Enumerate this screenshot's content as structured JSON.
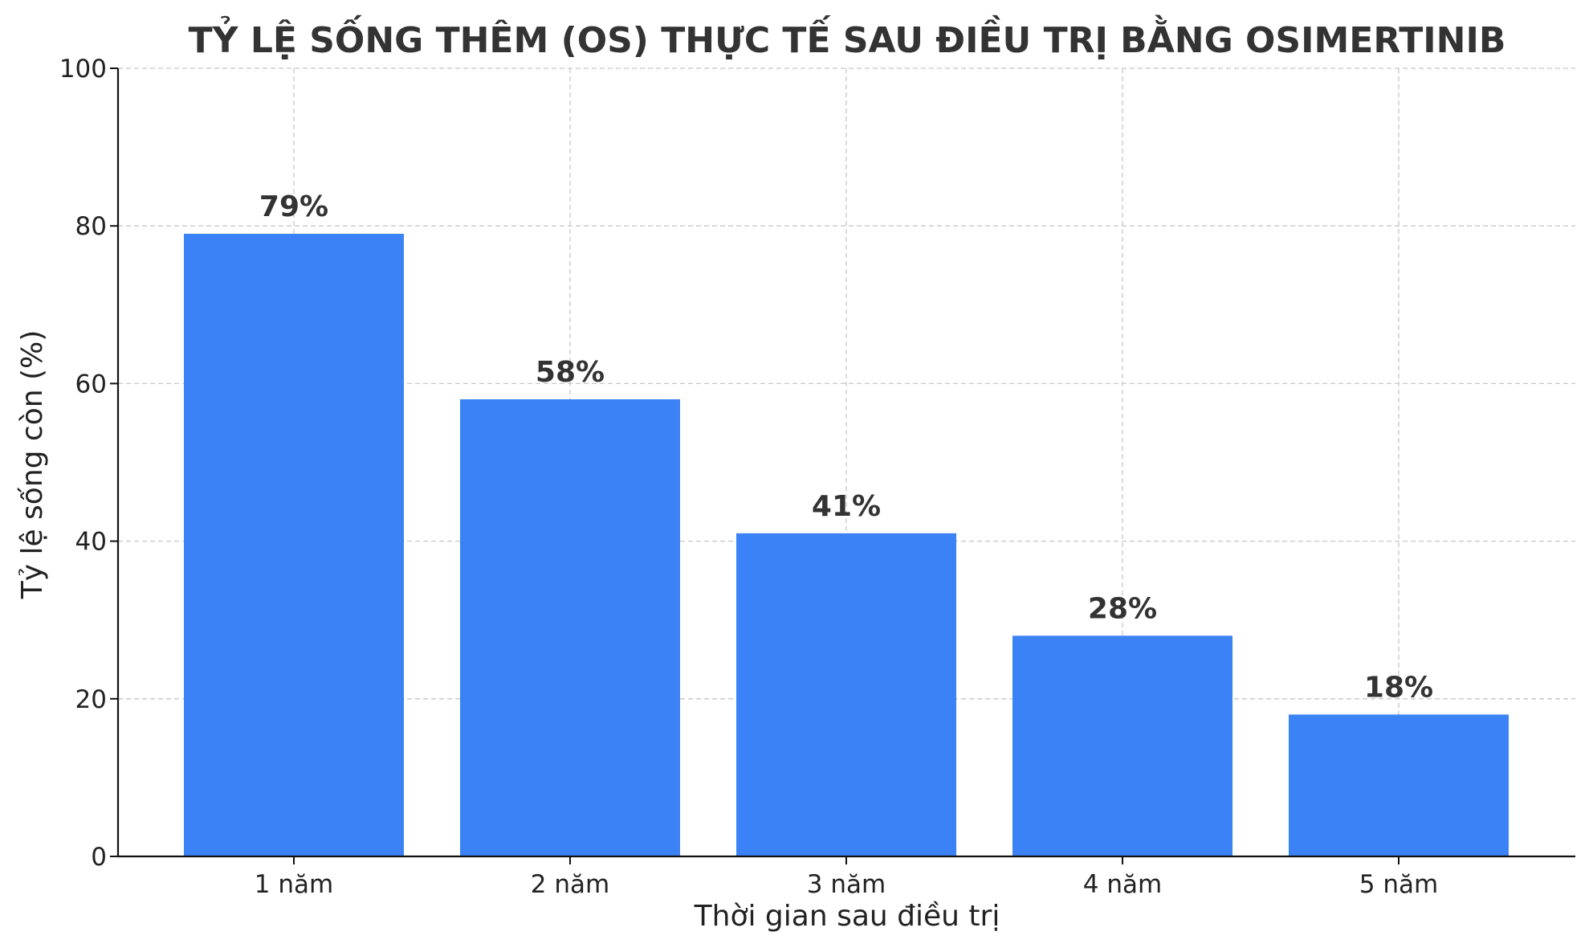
{
  "chart_data": {
    "type": "bar",
    "title": "TỶ LỆ SỐNG THÊM (OS) THỰC TẾ SAU ĐIỀU TRỊ BẰNG OSIMERTINIB",
    "xlabel": "Thời gian sau điều trị",
    "ylabel": "Tỷ lệ sống còn (%)",
    "categories": [
      "1 năm",
      "2 năm",
      "3 năm",
      "4 năm",
      "5 năm"
    ],
    "values": [
      79,
      58,
      41,
      28,
      18
    ],
    "data_labels": [
      "79%",
      "58%",
      "41%",
      "28%",
      "18%"
    ],
    "ylim": [
      0,
      100
    ],
    "yticks": [
      0,
      20,
      40,
      60,
      80,
      100
    ],
    "grid": true,
    "bar_color": "#3b82f6"
  }
}
